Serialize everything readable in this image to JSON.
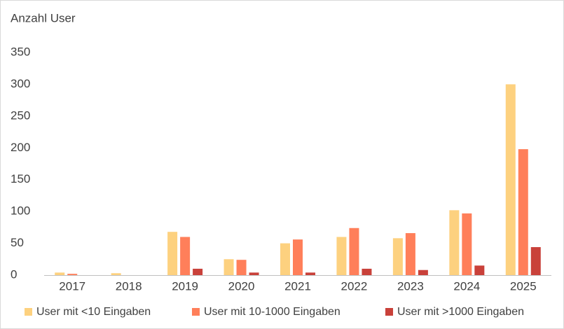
{
  "chart_data": {
    "type": "bar",
    "y_label": "Anzahl User",
    "categories": [
      "2017",
      "2018",
      "2019",
      "2020",
      "2021",
      "2022",
      "2023",
      "2024",
      "2025"
    ],
    "series": [
      {
        "name": "User mit <10 Eingaben",
        "color": "#fdd17f",
        "values": [
          4,
          3,
          68,
          25,
          50,
          60,
          58,
          102,
          300
        ]
      },
      {
        "name": "User mit 10-1000 Eingaben",
        "color": "#ff7f5a",
        "values": [
          2,
          0,
          60,
          24,
          56,
          74,
          66,
          97,
          198
        ]
      },
      {
        "name": "User mit >1000 Eingaben",
        "color": "#c9413a",
        "values": [
          0,
          0,
          10,
          4,
          4,
          10,
          8,
          15,
          44
        ]
      }
    ],
    "ylim": [
      0,
      350
    ],
    "yticks": [
      0,
      50,
      100,
      150,
      200,
      250,
      300,
      350
    ],
    "grid": false,
    "legend": "bottom"
  }
}
